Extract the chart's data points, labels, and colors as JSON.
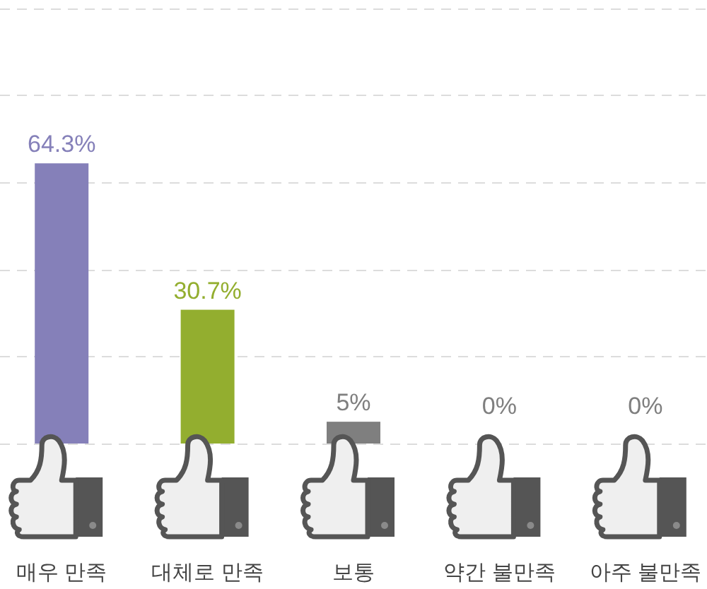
{
  "chart_data": {
    "type": "bar",
    "categories": [
      "매우 만족",
      "대체로 만족",
      "보통",
      "약간 불만족",
      "아주 불만족"
    ],
    "values": [
      64.3,
      30.7,
      5,
      0,
      0
    ],
    "colors": [
      "#8580b9",
      "#93ae2f",
      "#7f7f7f",
      "#7f7f7f",
      "#7f7f7f"
    ],
    "value_labels": [
      "64.3%",
      "30.7%",
      "5%",
      "0%",
      "0%"
    ],
    "ylim": [
      0,
      100
    ],
    "yticks": [
      {
        "value": 0,
        "label": null
      },
      {
        "value": 20,
        "label": null
      },
      {
        "value": 40,
        "label": null
      },
      {
        "value": 60,
        "label": null
      },
      {
        "value": 80,
        "label": null
      },
      {
        "value": 100,
        "label": null
      }
    ],
    "grid": "y",
    "tick_labels": "x"
  }
}
